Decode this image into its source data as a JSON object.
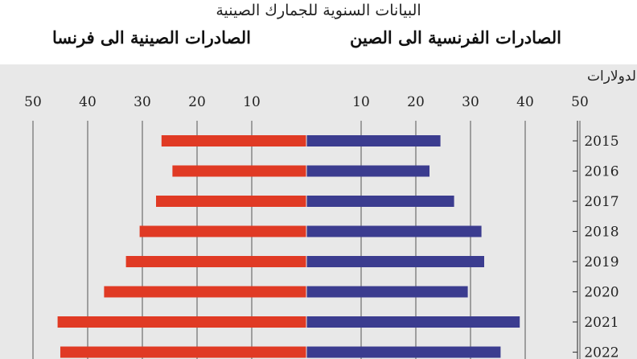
{
  "header": {
    "title": "البيانات السنوية للجمارك الصينية",
    "left_heading": "الصادرات الصينية الى فرنسا",
    "right_heading": "الصادرات الفرنسية الى الصين",
    "unit_label": "بمليارات الدولارات"
  },
  "colors": {
    "china_exports": "#e03a24",
    "france_exports": "#3b3c8f",
    "panel_bg": "#e8e8e8",
    "grid": "#555555"
  },
  "chart_data": {
    "type": "bar",
    "orientation": "horizontal-butterfly",
    "categories": [
      "2015",
      "2016",
      "2017",
      "2018",
      "2019",
      "2020",
      "2021",
      "2022"
    ],
    "series": [
      {
        "name": "الصادرات الصينية الى فرنسا",
        "side": "left",
        "values": [
          26.5,
          24.5,
          27.5,
          30.5,
          33,
          37,
          45.5,
          45
        ]
      },
      {
        "name": "الصادرات الفرنسية الى الصين",
        "side": "right",
        "values": [
          24.5,
          22.5,
          27,
          32,
          32.5,
          29.5,
          39,
          35.5
        ]
      }
    ],
    "xlim": [
      0,
      50
    ],
    "xticks": [
      "50",
      "40",
      "30",
      "20",
      "10",
      "10",
      "20",
      "30",
      "40",
      "50"
    ],
    "grid": true
  }
}
